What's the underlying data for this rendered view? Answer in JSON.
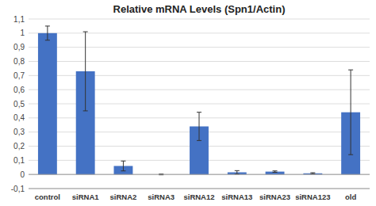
{
  "chart_data": {
    "type": "bar",
    "title": "Relative mRNA Levels (Spn1/Actin)",
    "categories": [
      "control",
      "siRNA1",
      "siRNA2",
      "siRNA3",
      "siRNA12",
      "siRNA13",
      "siRNA23",
      "siRNA123",
      "old"
    ],
    "values": [
      1.0,
      0.73,
      0.06,
      0.0,
      0.34,
      0.015,
      0.02,
      0.008,
      0.44
    ],
    "errors": [
      0.05,
      0.28,
      0.035,
      0.003,
      0.1,
      0.012,
      0.005,
      0.004,
      0.3
    ],
    "color": "#4472C4",
    "ylim": [
      -0.1,
      1.1
    ],
    "yticks": [
      {
        "value": -0.1,
        "label": "-0,1"
      },
      0,
      {
        "value": 0.1,
        "label": "0,1"
      },
      {
        "value": 0.2,
        "label": "0,2"
      },
      {
        "value": 0.3,
        "label": "0,3"
      },
      {
        "value": 0.4,
        "label": "0,4"
      },
      {
        "value": 0.5,
        "label": "0,5"
      },
      {
        "value": 0.6,
        "label": "0,6"
      },
      {
        "value": 0.7,
        "label": "0,7"
      },
      {
        "value": 0.8,
        "label": "0,8"
      },
      {
        "value": 0.9,
        "label": "0,9"
      },
      1,
      {
        "value": 1.1,
        "label": "1,1"
      }
    ],
    "grid": true
  }
}
